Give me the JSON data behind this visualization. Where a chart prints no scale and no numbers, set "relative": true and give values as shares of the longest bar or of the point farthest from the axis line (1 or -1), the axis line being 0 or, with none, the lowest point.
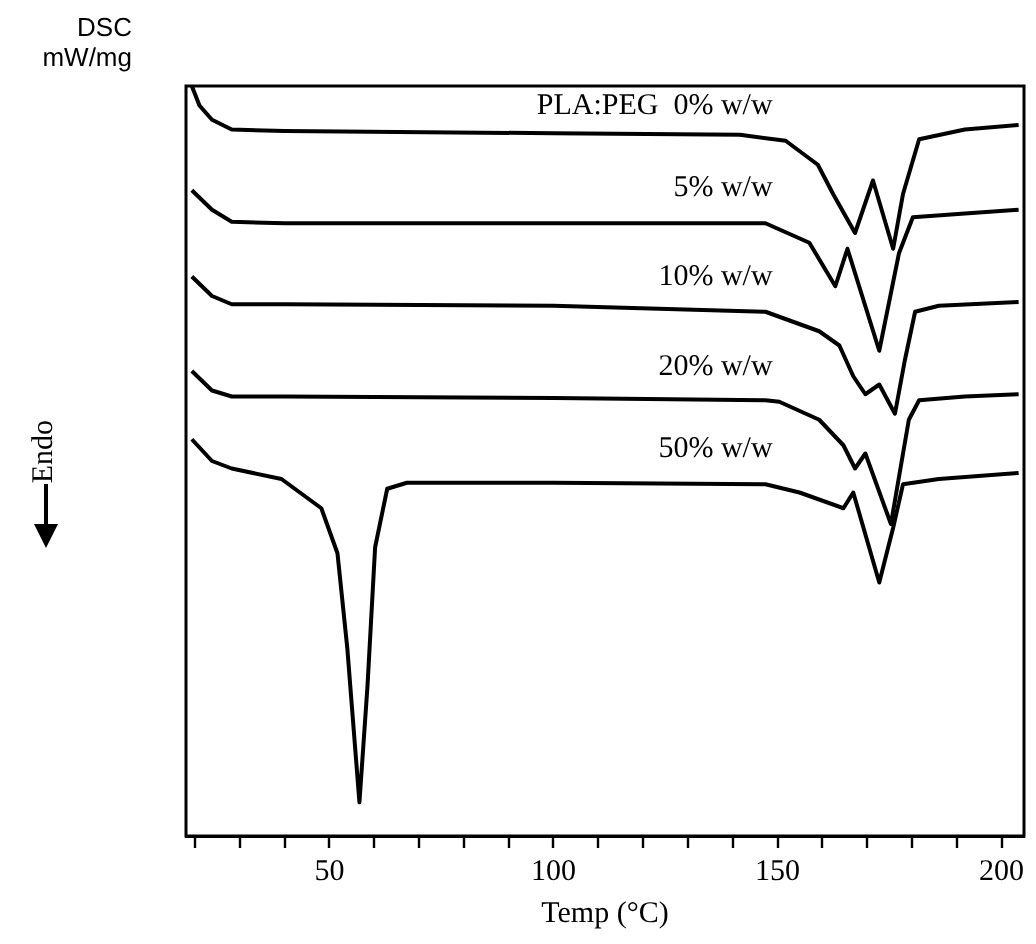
{
  "chart_data": {
    "type": "line",
    "relative": true,
    "xlabel": "Temp (°C)",
    "ylabel": "DSC mW/mg",
    "annotations": [
      "Endo"
    ],
    "xlim": [
      18,
      205
    ],
    "xticks": [
      {
        "value": 20,
        "label": null
      },
      {
        "value": 30,
        "label": null
      },
      {
        "value": 40,
        "label": null
      },
      50,
      {
        "value": 60,
        "label": null
      },
      {
        "value": 70,
        "label": null
      },
      {
        "value": 80,
        "label": null
      },
      {
        "value": 90,
        "label": null
      },
      100,
      {
        "value": 110,
        "label": null
      },
      {
        "value": 120,
        "label": null
      },
      {
        "value": 130,
        "label": null
      },
      {
        "value": 140,
        "label": null
      },
      150,
      {
        "value": 160,
        "label": null
      },
      {
        "value": 170,
        "label": null
      },
      {
        "value": 180,
        "label": null
      },
      {
        "value": 190,
        "label": null
      },
      200
    ],
    "tick_labels": "x",
    "grid": false,
    "legend": false,
    "marker": "none",
    "line_style": "solid",
    "series": [
      {
        "name": "PLA:PEG  0% w/w",
        "color": "#000000",
        "x": [
          19.3,
          21,
          23.8,
          28.2,
          40,
          100,
          141.6,
          151.8,
          159,
          162.4,
          167.3,
          171.3,
          175.8,
          178,
          181.6,
          191.8,
          203.8
        ],
        "values": [
          1.0,
          0.974,
          0.955,
          0.942,
          0.94,
          0.937,
          0.935,
          0.927,
          0.895,
          0.856,
          0.804,
          0.874,
          0.783,
          0.856,
          0.929,
          0.942,
          0.948
        ]
      },
      {
        "name": "5% w/w",
        "color": "#000000",
        "x": [
          19.3,
          23.8,
          28.2,
          40,
          100,
          147.3,
          157.1,
          162.9,
          165.6,
          172.7,
          177.1,
          180.2,
          191.8,
          203.8
        ],
        "values": [
          0.861,
          0.835,
          0.819,
          0.817,
          0.817,
          0.817,
          0.791,
          0.733,
          0.783,
          0.647,
          0.777,
          0.825,
          0.83,
          0.835
        ]
      },
      {
        "name": "10% w/w",
        "color": "#000000",
        "x": [
          19.3,
          23.8,
          28.2,
          40,
          100,
          147.3,
          159.3,
          163.8,
          166.9,
          169.6,
          172.7,
          176.2,
          178.4,
          180.7,
          186,
          203.8
        ],
        "values": [
          0.746,
          0.72,
          0.709,
          0.709,
          0.707,
          0.699,
          0.673,
          0.654,
          0.613,
          0.589,
          0.602,
          0.563,
          0.634,
          0.699,
          0.707,
          0.712
        ]
      },
      {
        "name": "20% w/w",
        "color": "#000000",
        "x": [
          19.3,
          23.8,
          28.2,
          40,
          100,
          147.3,
          150.4,
          159.3,
          164.7,
          167.3,
          169.6,
          175.3,
          179.3,
          181.6,
          191.8,
          203.8
        ],
        "values": [
          0.62,
          0.594,
          0.586,
          0.586,
          0.584,
          0.581,
          0.579,
          0.555,
          0.521,
          0.49,
          0.51,
          0.416,
          0.555,
          0.581,
          0.586,
          0.589
        ]
      },
      {
        "name": "50% w/w",
        "color": "#000000",
        "x": [
          19.3,
          23.8,
          28.2,
          39.3,
          48.2,
          51.8,
          54,
          56.7,
          58.5,
          60.2,
          62.9,
          67.3,
          100,
          147.3,
          154.9,
          164.7,
          166.9,
          172.7,
          175.8,
          178,
          186,
          203.8
        ],
        "values": [
          0.529,
          0.5,
          0.49,
          0.476,
          0.437,
          0.377,
          0.25,
          0.045,
          0.2,
          0.385,
          0.463,
          0.471,
          0.471,
          0.469,
          0.458,
          0.437,
          0.458,
          0.338,
          0.411,
          0.469,
          0.476,
          0.484
        ]
      }
    ]
  }
}
